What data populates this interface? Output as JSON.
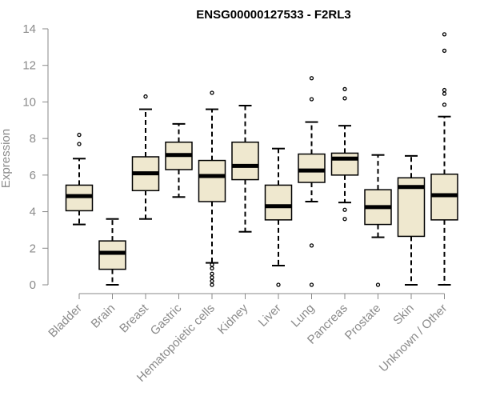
{
  "chart_data": {
    "type": "boxplot",
    "title": "ENSG00000127533 - F2RL3",
    "xlabel": "",
    "ylabel": "Expression",
    "ylim": [
      0,
      14
    ],
    "yticks": [
      "0",
      "2",
      "4",
      "6",
      "8",
      "10",
      "12",
      "14"
    ],
    "grid": false,
    "box_fill": "#efe8cf",
    "box_stroke": "#000000",
    "axis_color": "#8a8a8a",
    "categories": [
      "Bladder",
      "Brain",
      "Breast",
      "Gastric",
      "Hematopoietic cells",
      "Kidney",
      "Liver",
      "Lung",
      "Pancreas",
      "Prostate",
      "Skin",
      "Unknown / Other"
    ],
    "boxes": [
      {
        "whisker_low": 3.3,
        "q1": 4.05,
        "median": 4.85,
        "q3": 5.45,
        "whisker_high": 6.9,
        "outliers": [
          7.7,
          8.2
        ]
      },
      {
        "whisker_low": 0.0,
        "q1": 0.85,
        "median": 1.75,
        "q3": 2.4,
        "whisker_high": 3.6,
        "outliers": []
      },
      {
        "whisker_low": 3.6,
        "q1": 5.15,
        "median": 6.1,
        "q3": 7.0,
        "whisker_high": 9.6,
        "outliers": [
          10.3
        ]
      },
      {
        "whisker_low": 4.8,
        "q1": 6.3,
        "median": 7.1,
        "q3": 7.8,
        "whisker_high": 8.8,
        "outliers": []
      },
      {
        "whisker_low": 1.2,
        "q1": 4.55,
        "median": 5.95,
        "q3": 6.8,
        "whisker_high": 9.6,
        "outliers": [
          0.0,
          0.2,
          0.4,
          0.6,
          0.9,
          1.1,
          10.5
        ]
      },
      {
        "whisker_low": 2.9,
        "q1": 5.75,
        "median": 6.5,
        "q3": 7.8,
        "whisker_high": 9.8,
        "outliers": []
      },
      {
        "whisker_low": 1.05,
        "q1": 3.55,
        "median": 4.3,
        "q3": 5.45,
        "whisker_high": 7.45,
        "outliers": [
          0.0
        ]
      },
      {
        "whisker_low": 4.55,
        "q1": 5.6,
        "median": 6.25,
        "q3": 7.15,
        "whisker_high": 8.9,
        "outliers": [
          0.0,
          2.15,
          10.15,
          11.3
        ]
      },
      {
        "whisker_low": 4.5,
        "q1": 6.0,
        "median": 6.9,
        "q3": 7.2,
        "whisker_high": 8.7,
        "outliers": [
          3.6,
          4.1,
          10.2,
          10.7
        ]
      },
      {
        "whisker_low": 2.6,
        "q1": 3.3,
        "median": 4.25,
        "q3": 5.2,
        "whisker_high": 7.1,
        "outliers": [
          0.0
        ]
      },
      {
        "whisker_low": 0.0,
        "q1": 2.65,
        "median": 5.35,
        "q3": 5.85,
        "whisker_high": 7.05,
        "outliers": []
      },
      {
        "whisker_low": 0.0,
        "q1": 3.55,
        "median": 4.9,
        "q3": 6.05,
        "whisker_high": 9.2,
        "outliers": [
          9.85,
          10.45,
          10.65,
          12.8,
          13.7
        ]
      }
    ]
  }
}
